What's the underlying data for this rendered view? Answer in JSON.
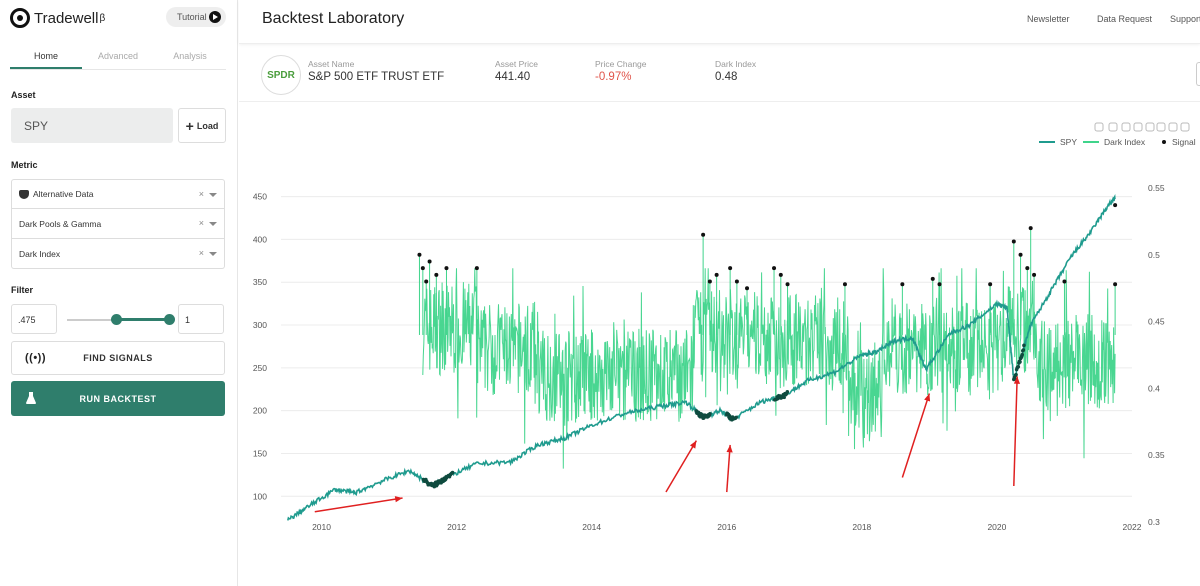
{
  "app": {
    "name": "Tradewell",
    "superscript": "β",
    "tutorial_label": "Tutorial"
  },
  "sidebar": {
    "tabs": [
      {
        "label": "Home",
        "active": true
      },
      {
        "label": "Advanced",
        "active": false
      },
      {
        "label": "Analysis",
        "active": false
      }
    ],
    "asset_label": "Asset",
    "asset_value": "SPY",
    "load_label": "Load",
    "metric_label": "Metric",
    "metrics": [
      "Alternative Data",
      "Dark Pools & Gamma",
      "Dark Index"
    ],
    "filter_label": "Filter",
    "filter_min": ".475",
    "filter_max": "1",
    "filter_range": [
      0.475,
      1
    ],
    "find_signals_label": "FIND SIGNALS",
    "run_backtest_label": "RUN BACKTEST"
  },
  "header": {
    "title": "Backtest Laboratory",
    "nav": [
      "Newsletter",
      "Data Request",
      "Support"
    ]
  },
  "asset": {
    "logo_text": "SPDR",
    "name_label": "Asset Name",
    "name": "S&P 500 ETF TRUST ETF",
    "price_label": "Asset Price",
    "price": "441.40",
    "change_label": "Price Change",
    "change": "-0.97%",
    "dark_index_label": "Dark Index",
    "dark_index": "0.48"
  },
  "colors": {
    "accent": "#2f7e6c",
    "spy_line": "#1f9b8e",
    "dark_index_line": "#3fd48b",
    "signal": "#111111",
    "arrow": "#e02020",
    "negative": "#e0544a"
  },
  "chart_data": {
    "type": "line",
    "legend": [
      "SPY",
      "Dark Index",
      "Signal"
    ],
    "legend_position": "top-right",
    "x_ticks": [
      "2010",
      "2012",
      "2014",
      "2016",
      "2018",
      "2020",
      "2022"
    ],
    "xlim": [
      2009.4,
      2022
    ],
    "y_left_ticks": [
      "100",
      "150",
      "200",
      "250",
      "300",
      "350",
      "400",
      "450"
    ],
    "y_left_range": [
      70,
      460
    ],
    "y_right_ticks": [
      "0.3",
      "0.35",
      "0.4",
      "0.45",
      "0.5",
      "0.55"
    ],
    "y_right_range": [
      0.3,
      0.55
    ],
    "grid": true,
    "series": [
      {
        "name": "SPY",
        "axis": "left",
        "x": [
          2009.5,
          2009.8,
          2010.2,
          2010.5,
          2010.9,
          2011.3,
          2011.65,
          2011.85,
          2012.3,
          2012.8,
          2013.2,
          2013.6,
          2014.0,
          2014.5,
          2015.0,
          2015.4,
          2015.65,
          2015.9,
          2016.1,
          2016.5,
          2016.85,
          2017.2,
          2017.6,
          2018.0,
          2018.2,
          2018.5,
          2018.75,
          2018.95,
          2019.3,
          2019.6,
          2020.0,
          2020.15,
          2020.25,
          2020.5,
          2020.8,
          2021.1,
          2021.4,
          2021.65,
          2021.75
        ],
        "y": [
          72,
          88,
          108,
          104,
          118,
          130,
          112,
          122,
          138,
          140,
          160,
          168,
          183,
          197,
          205,
          210,
          192,
          200,
          190,
          210,
          218,
          235,
          245,
          265,
          268,
          282,
          285,
          248,
          290,
          300,
          325,
          320,
          235,
          300,
          340,
          380,
          410,
          440,
          448
        ]
      },
      {
        "name": "Dark Index",
        "axis": "right",
        "x_range": [
          2011.5,
          2021.75
        ],
        "generated": true
      }
    ],
    "signal_peaks": [
      {
        "x": 2011.45,
        "y": 0.5
      },
      {
        "x": 2011.5,
        "y": 0.49
      },
      {
        "x": 2011.55,
        "y": 0.48
      },
      {
        "x": 2011.6,
        "y": 0.495
      },
      {
        "x": 2011.7,
        "y": 0.485
      },
      {
        "x": 2011.85,
        "y": 0.49
      },
      {
        "x": 2012.3,
        "y": 0.49
      },
      {
        "x": 2015.65,
        "y": 0.515
      },
      {
        "x": 2015.75,
        "y": 0.48
      },
      {
        "x": 2015.85,
        "y": 0.485
      },
      {
        "x": 2016.05,
        "y": 0.49
      },
      {
        "x": 2016.15,
        "y": 0.48
      },
      {
        "x": 2016.3,
        "y": 0.475
      },
      {
        "x": 2016.7,
        "y": 0.49
      },
      {
        "x": 2016.8,
        "y": 0.485
      },
      {
        "x": 2016.9,
        "y": 0.478
      },
      {
        "x": 2017.75,
        "y": 0.478
      },
      {
        "x": 2018.6,
        "y": 0.478
      },
      {
        "x": 2019.05,
        "y": 0.482
      },
      {
        "x": 2019.15,
        "y": 0.478
      },
      {
        "x": 2019.9,
        "y": 0.478
      },
      {
        "x": 2020.25,
        "y": 0.51
      },
      {
        "x": 2020.35,
        "y": 0.5
      },
      {
        "x": 2020.45,
        "y": 0.49
      },
      {
        "x": 2020.5,
        "y": 0.52
      },
      {
        "x": 2020.55,
        "y": 0.485
      },
      {
        "x": 2021.0,
        "y": 0.48
      },
      {
        "x": 2021.75,
        "y": 0.478
      }
    ],
    "signal_clusters_on_spy": [
      {
        "x_start": 2011.5,
        "x_end": 2011.95
      },
      {
        "x_start": 2015.55,
        "x_end": 2015.75
      },
      {
        "x_start": 2016.0,
        "x_end": 2016.15
      },
      {
        "x_start": 2016.7,
        "x_end": 2016.9
      },
      {
        "x_start": 2020.25,
        "x_end": 2020.4
      }
    ],
    "annotations": [
      {
        "type": "arrow",
        "from": [
          2009.9,
          82
        ],
        "to": [
          2011.2,
          98
        ]
      },
      {
        "type": "arrow",
        "from": [
          2015.1,
          105
        ],
        "to": [
          2015.55,
          165
        ]
      },
      {
        "type": "arrow",
        "from": [
          2016.0,
          105
        ],
        "to": [
          2016.05,
          160
        ]
      },
      {
        "type": "arrow",
        "from": [
          2018.6,
          122
        ],
        "to": [
          2019.0,
          220
        ]
      },
      {
        "type": "arrow",
        "from": [
          2020.25,
          112
        ],
        "to": [
          2020.3,
          240
        ]
      }
    ]
  }
}
